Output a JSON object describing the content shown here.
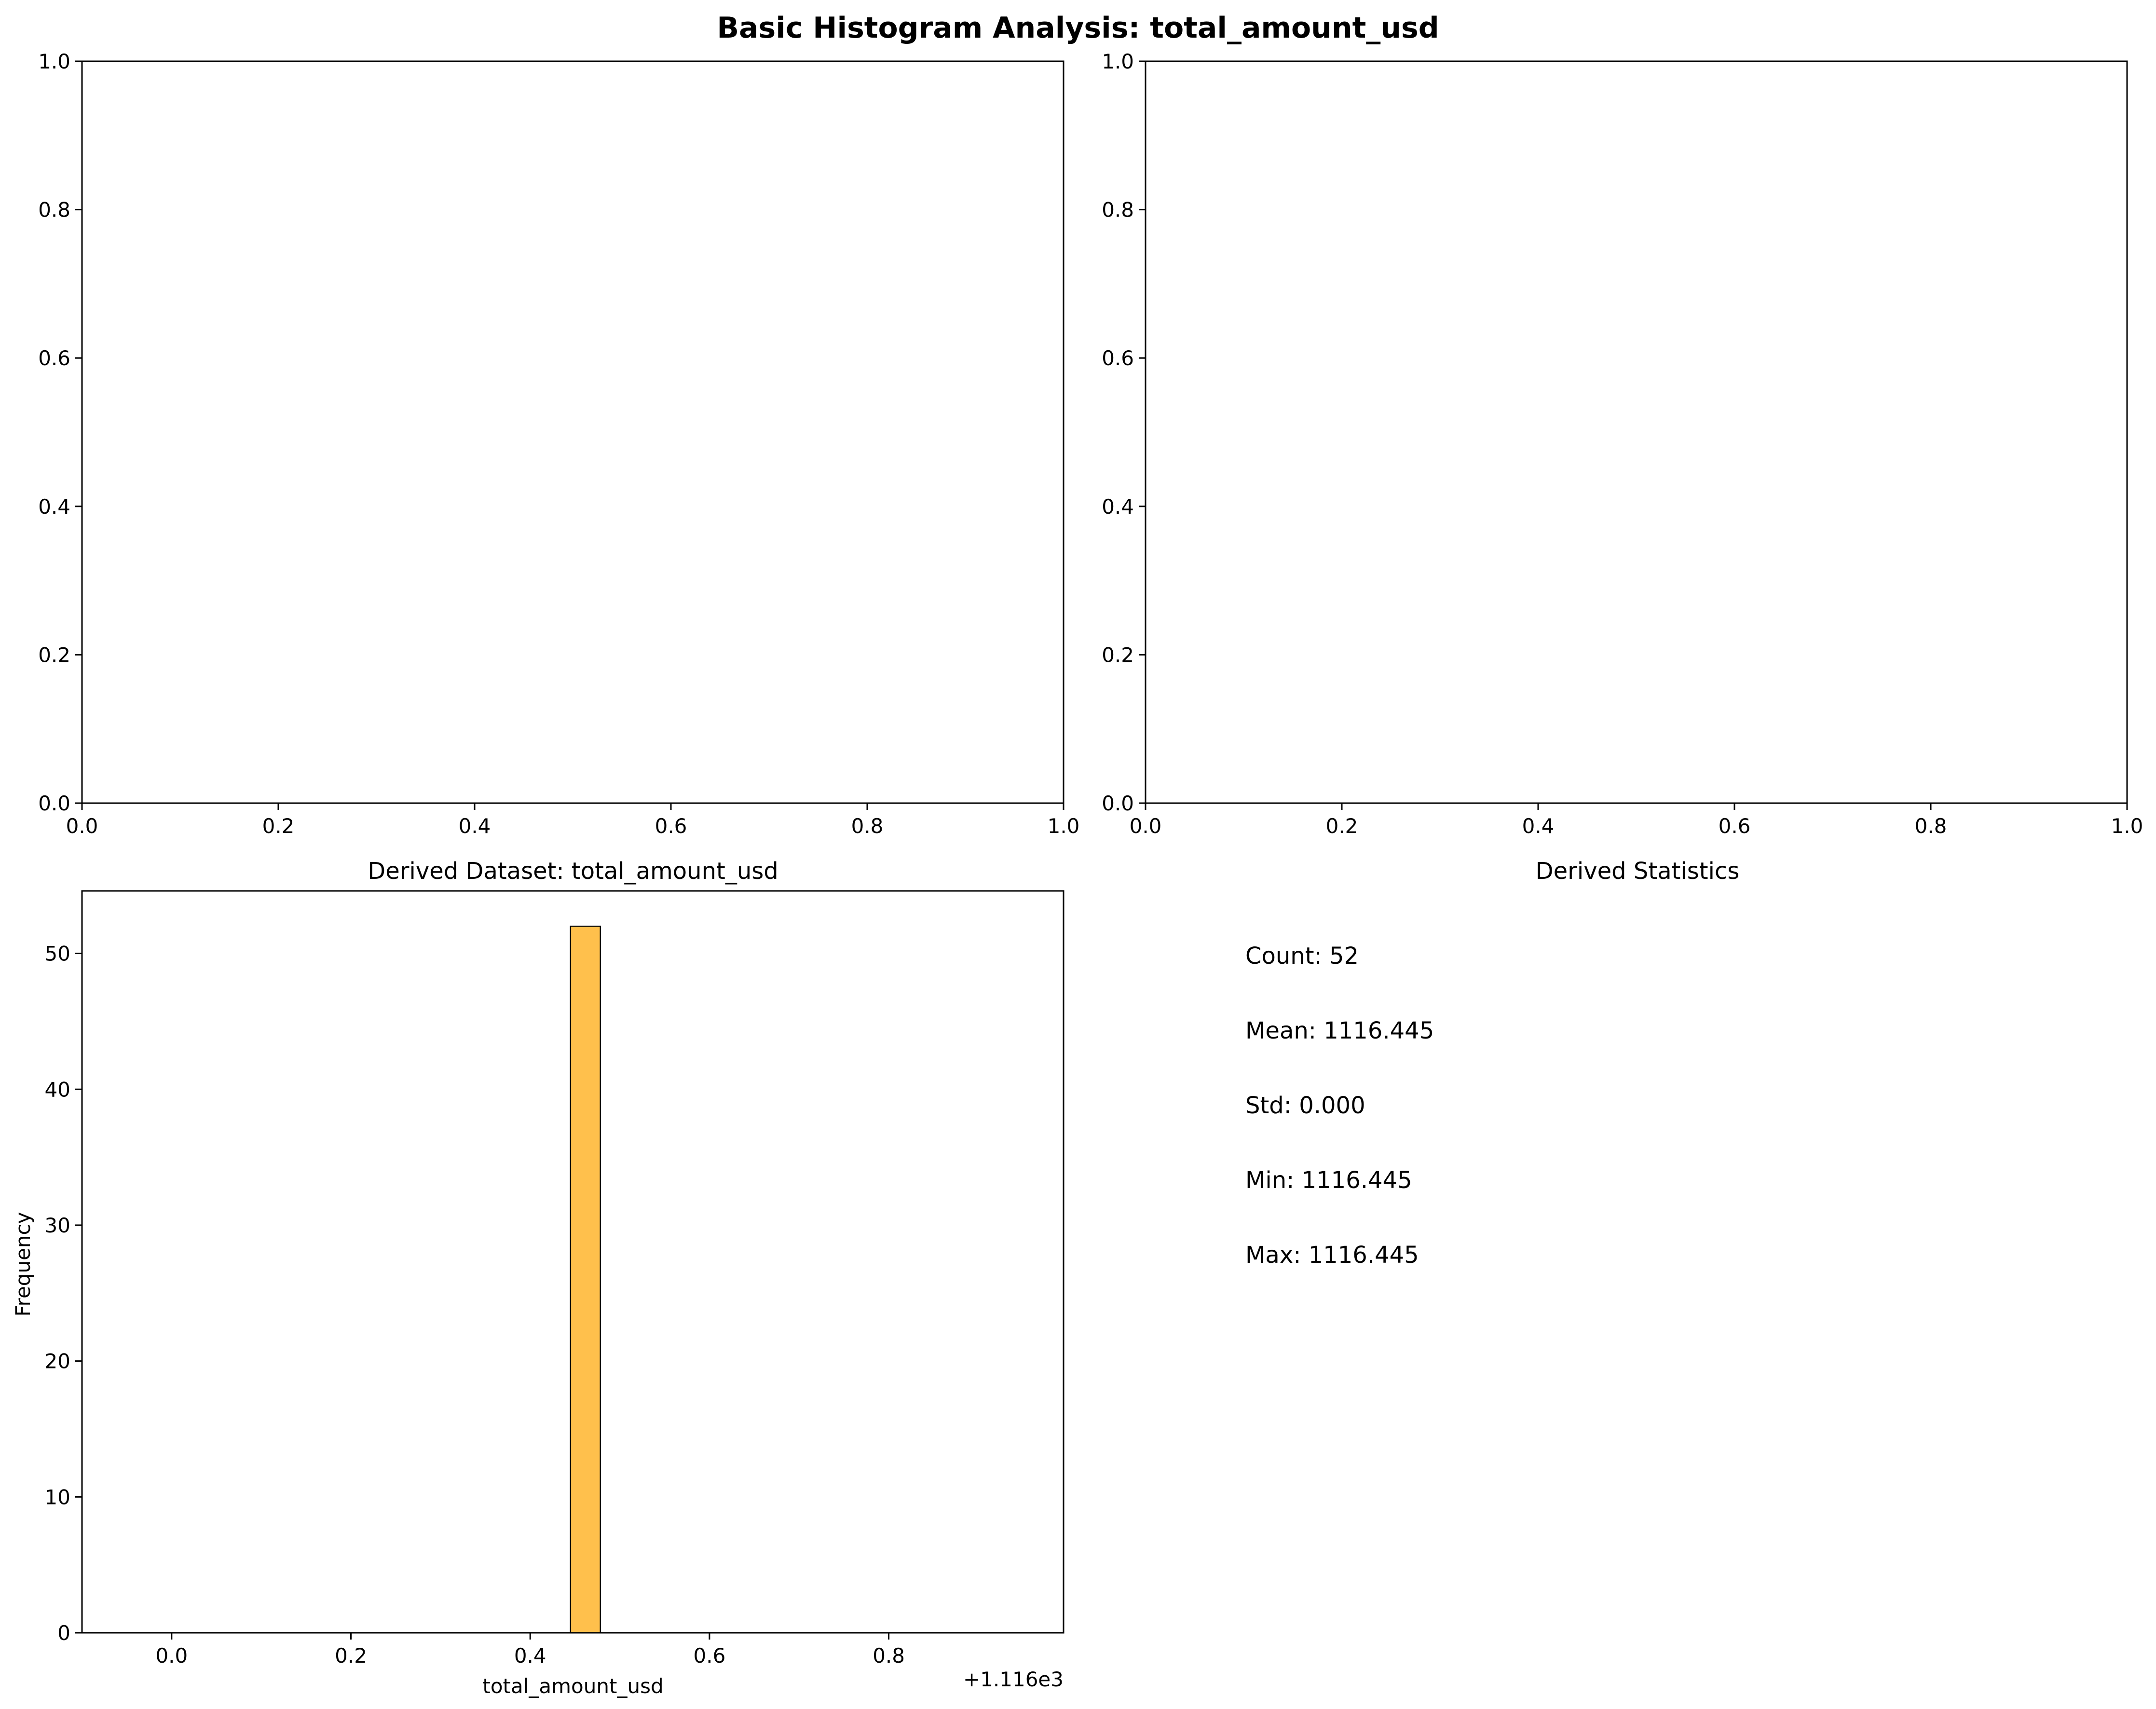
{
  "figure": {
    "suptitle": "Basic Histogram Analysis: total_amount_usd"
  },
  "panels": {
    "top_left": {
      "x_ticks": [
        "0.0",
        "0.2",
        "0.4",
        "0.6",
        "0.8",
        "1.0"
      ],
      "y_ticks": [
        "0.0",
        "0.2",
        "0.4",
        "0.6",
        "0.8",
        "1.0"
      ]
    },
    "top_right": {
      "x_ticks": [
        "0.0",
        "0.2",
        "0.4",
        "0.6",
        "0.8",
        "1.0"
      ],
      "y_ticks": [
        "0.0",
        "0.2",
        "0.4",
        "0.6",
        "0.8",
        "1.0"
      ]
    },
    "histogram": {
      "title": "Derived Dataset: total_amount_usd",
      "xlabel": "total_amount_usd",
      "ylabel": "Frequency",
      "offset_label": "+1.116e3",
      "x_ticks": [
        "0.0",
        "0.2",
        "0.4",
        "0.6",
        "0.8"
      ],
      "y_ticks": [
        "0",
        "10",
        "20",
        "30",
        "40",
        "50"
      ]
    },
    "stats": {
      "title": "Derived Statistics",
      "lines": [
        "Count: 52",
        "Mean: 1116.445",
        "Std: 0.000",
        "Min: 1116.445",
        "Max: 1116.445"
      ]
    }
  },
  "chart_data": [
    {
      "type": "bar",
      "title": "",
      "xlim": [
        0,
        1
      ],
      "ylim": [
        0,
        1
      ],
      "values": []
    },
    {
      "type": "bar",
      "title": "",
      "xlim": [
        0,
        1
      ],
      "ylim": [
        0,
        1
      ],
      "values": []
    },
    {
      "type": "bar",
      "title": "Derived Dataset: total_amount_usd",
      "xlabel": "total_amount_usd",
      "ylabel": "Frequency",
      "x_offset": 1116,
      "xlim": [
        -0.1,
        0.995
      ],
      "ylim": [
        0,
        54.6
      ],
      "bins": {
        "start": -0.055,
        "end": 0.945,
        "count": 30
      },
      "counts": [
        0,
        0,
        0,
        0,
        0,
        0,
        0,
        0,
        0,
        0,
        0,
        0,
        0,
        0,
        0,
        52,
        0,
        0,
        0,
        0,
        0,
        0,
        0,
        0,
        0,
        0,
        0,
        0,
        0,
        0
      ],
      "bar_color": "#ffa500",
      "bar_alpha": 0.7,
      "edge_color": "#000000"
    },
    {
      "type": "table",
      "title": "Derived Statistics",
      "rows": [
        {
          "label": "Count",
          "value": 52
        },
        {
          "label": "Mean",
          "value": 1116.445
        },
        {
          "label": "Std",
          "value": 0.0
        },
        {
          "label": "Min",
          "value": 1116.445
        },
        {
          "label": "Max",
          "value": 1116.445
        }
      ]
    }
  ]
}
